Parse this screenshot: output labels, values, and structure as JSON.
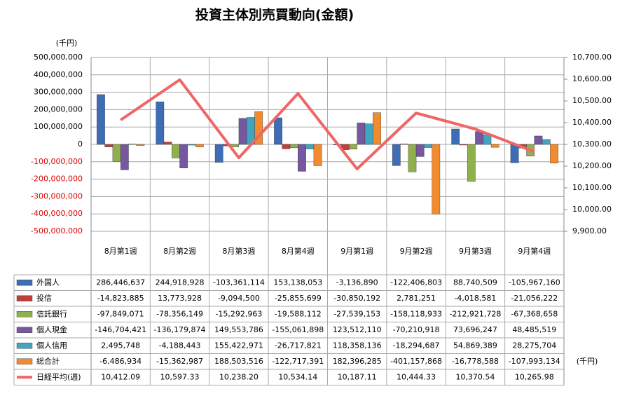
{
  "chart_data": {
    "type": "bar",
    "title": "投資主体別売買動向(金額)",
    "ylabel": "(千円)",
    "unit_note": "(千円)",
    "categories": [
      "8月第1週",
      "8月第2週",
      "8月第3週",
      "8月第4週",
      "9月第1週",
      "9月第2週",
      "9月第3週",
      "9月第4週"
    ],
    "ylim": [
      -500000000,
      500000000
    ],
    "yticks": [
      {
        "value": -500000000,
        "label": "-500,000,000"
      },
      {
        "value": -400000000,
        "label": "-400,000,000"
      },
      {
        "value": -300000000,
        "label": "-300,000,000"
      },
      {
        "value": -200000000,
        "label": "-200,000,000"
      },
      {
        "value": -100000000,
        "label": "-100,000,000"
      },
      0,
      {
        "value": 100000000,
        "label": "100,000,000"
      },
      {
        "value": 200000000,
        "label": "200,000,000"
      },
      {
        "value": 300000000,
        "label": "300,000,000"
      },
      {
        "value": 400000000,
        "label": "400,000,000"
      },
      {
        "value": 500000000,
        "label": "500,000,000"
      }
    ],
    "y2lim": [
      9900,
      10700
    ],
    "y2ticks": [
      {
        "value": 9900,
        "label": "9,900.00"
      },
      {
        "value": 10000,
        "label": "10,000.00"
      },
      {
        "value": 10100,
        "label": "10,100.00"
      },
      {
        "value": 10200,
        "label": "10,200.00"
      },
      {
        "value": 10300,
        "label": "10,300.00"
      },
      {
        "value": 10400,
        "label": "10,400.00"
      },
      {
        "value": 10500,
        "label": "10,500.00"
      },
      {
        "value": 10600,
        "label": "10,600.00"
      },
      {
        "value": 10700,
        "label": "10,700.00"
      }
    ],
    "grid": true,
    "series": [
      {
        "name": "外国人",
        "color": "#3e6db5",
        "values": [
          286446637,
          244918928,
          -103361114,
          153138053,
          -3136890,
          -122406803,
          88740509,
          -105967160
        ],
        "value_labels": [
          "286,446,637",
          "244,918,928",
          "-103,361,114",
          "153,138,053",
          "-3,136,890",
          "-122,406,803",
          "88,740,509",
          "-105,967,160"
        ]
      },
      {
        "name": "投信",
        "color": "#be3f3c",
        "values": [
          -14823885,
          13773928,
          -9094500,
          -25855699,
          -30850192,
          2781251,
          -4018581,
          -21056222
        ],
        "value_labels": [
          "-14,823,885",
          "13,773,928",
          "-9,094,500",
          "-25,855,699",
          "-30,850,192",
          "2,781,251",
          "-4,018,581",
          "-21,056,222"
        ]
      },
      {
        "name": "信託銀行",
        "color": "#8fb04c",
        "values": [
          -97849071,
          -78356149,
          -15292963,
          -19588112,
          -27539153,
          -158118933,
          -212921728,
          -67368658
        ],
        "value_labels": [
          "-97,849,071",
          "-78,356,149",
          "-15,292,963",
          "-19,588,112",
          "-27,539,153",
          "-158,118,933",
          "-212,921,728",
          "-67,368,658"
        ]
      },
      {
        "name": "個人現金",
        "color": "#7558a0",
        "values": [
          -146704421,
          -136179874,
          149553786,
          -155061898,
          123512110,
          -70210918,
          73696247,
          48485519
        ],
        "value_labels": [
          "-146,704,421",
          "-136,179,874",
          "149,553,786",
          "-155,061,898",
          "123,512,110",
          "-70,210,918",
          "73,696,247",
          "48,485,519"
        ]
      },
      {
        "name": "個人信用",
        "color": "#3fa6c2",
        "values": [
          2495748,
          -4188443,
          155422971,
          -26717821,
          118358136,
          -18294687,
          54869389,
          28275704
        ],
        "value_labels": [
          "2,495,748",
          "-4,188,443",
          "155,422,971",
          "-26,717,821",
          "118,358,136",
          "-18,294,687",
          "54,869,389",
          "28,275,704"
        ]
      },
      {
        "name": "総合計",
        "color": "#f28a2e",
        "values": [
          -6486934,
          -15362987,
          188503516,
          -122717391,
          182396285,
          -401157868,
          -16778588,
          -107993134
        ],
        "value_labels": [
          "-6,486,934",
          "-15,362,987",
          "188,503,516",
          "-122,717,391",
          "182,396,285",
          "-401,157,868",
          "-16,778,588",
          "-107,993,134"
        ]
      },
      {
        "name": "日経平均(週)",
        "color": "#f06565",
        "type": "line",
        "axis": "y2",
        "values": [
          10412.09,
          10597.33,
          10238.2,
          10534.14,
          10187.11,
          10444.33,
          10370.54,
          10265.98
        ],
        "value_labels": [
          "10,412.09",
          "10,597.33",
          "10,238.20",
          "10,534.14",
          "10,187.11",
          "10,444.33",
          "10,370.54",
          "10,265.98"
        ]
      }
    ]
  }
}
